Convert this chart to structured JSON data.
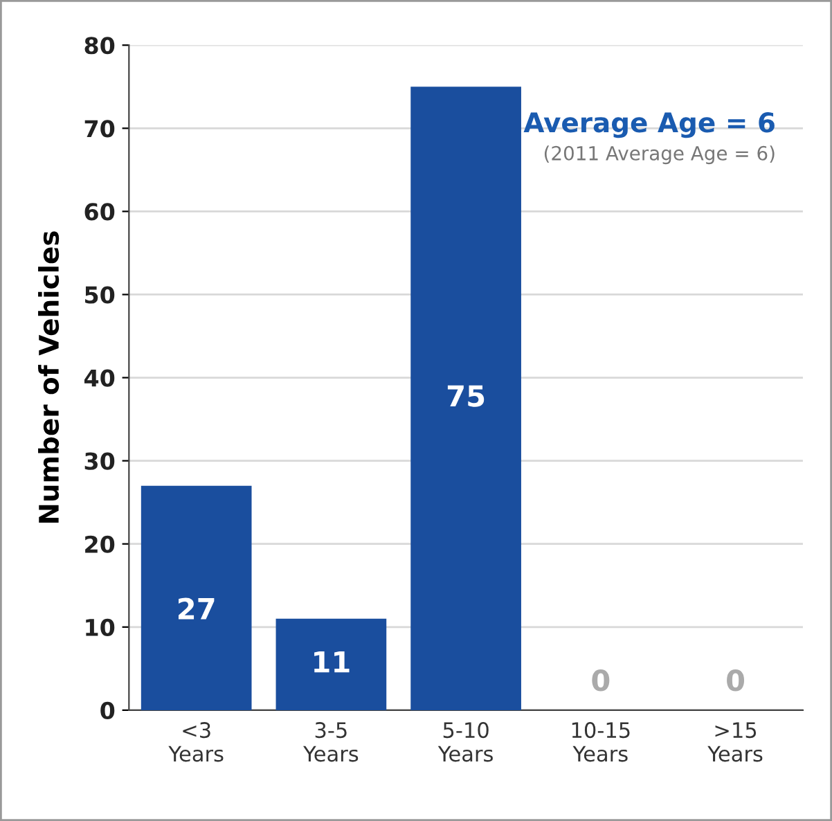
{
  "chart_data": {
    "type": "bar",
    "ylabel": "Number of Vehicles",
    "categories": [
      "<3\nYears",
      "3-5\nYears",
      "5-10\nYears",
      "10-15\nYears",
      ">15\nYears"
    ],
    "values": [
      27,
      11,
      75,
      0,
      0
    ],
    "color": "#1a4e9e",
    "ylim": [
      0,
      80
    ],
    "yticks": [
      0,
      10,
      20,
      30,
      40,
      50,
      60,
      70,
      80
    ],
    "grid": "y",
    "data_labels": true,
    "annotations": [
      "Average Age = 6",
      "(2011 Average Age = 6)"
    ]
  }
}
